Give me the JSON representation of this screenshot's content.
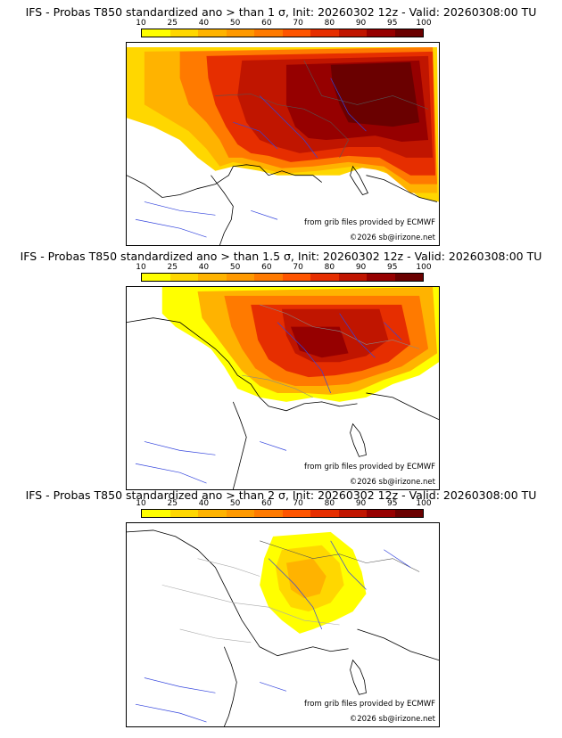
{
  "panels": [
    {
      "title": "IFS - Probas T850  standardized ano > than 1 σ, Init: 20260302 12z - Valid: 20260308:00 TU",
      "threshold_sigma": 1,
      "grib_credit": "from grib files provided by ECMWF",
      "copyright": "©2026 sb@irizone.net"
    },
    {
      "title": "IFS - Probas T850  standardized ano > than 1.5 σ, Init: 20260302 12z - Valid: 20260308:00 TU",
      "threshold_sigma": 1.5,
      "grib_credit": "from grib files provided by ECMWF",
      "copyright": "©2026 sb@irizone.net"
    },
    {
      "title": "IFS - Probas T850  standardized ano > than 2 σ, Init: 20260302 12z - Valid: 20260308:00 TU",
      "threshold_sigma": 2,
      "grib_credit": "from grib files provided by ECMWF",
      "copyright": "©2026 sb@irizone.net"
    }
  ],
  "colorbar": {
    "labels": [
      "10",
      "25",
      "40",
      "50",
      "60",
      "70",
      "80",
      "90",
      "95",
      "100"
    ],
    "colors": [
      "#ffff00",
      "#ffd700",
      "#ffb300",
      "#ff9900",
      "#ff7a00",
      "#ff5500",
      "#e62e00",
      "#c01500",
      "#960000",
      "#6a0000"
    ]
  }
}
